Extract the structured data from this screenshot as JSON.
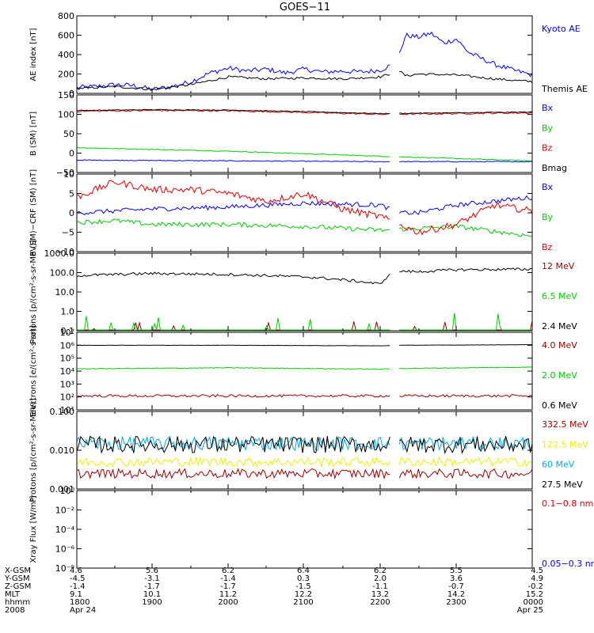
{
  "title": "GOES−11",
  "colors": {
    "black": "#000000",
    "blue": "#0000ee",
    "red": "#dd0000",
    "green": "#00cc00",
    "darkred": "#990000",
    "cyan": "#00aadd",
    "yellow": "#eeee00"
  },
  "time_axis": {
    "range_hhmm": [
      "1800",
      "0000"
    ],
    "ticks": [
      "1800",
      "1900",
      "2000",
      "2100",
      "2200",
      "2300",
      "0000"
    ],
    "data_gap": [
      "2208",
      "2214"
    ]
  },
  "footer": {
    "rows": [
      {
        "label": "X-GSM",
        "values": [
          "4.6",
          "5.6",
          "6.2",
          "6.4",
          "6.2",
          "5.5",
          "4.5"
        ]
      },
      {
        "label": "Y-GSM",
        "values": [
          "-4.5",
          "-3.1",
          "-1.4",
          "0.3",
          "2.0",
          "3.6",
          "4.9"
        ]
      },
      {
        "label": "Z-GSM",
        "values": [
          "-1.4",
          "-1.7",
          "-1.7",
          "-1.5",
          "-1.1",
          "-0.7",
          "-0.2"
        ]
      },
      {
        "label": "MLT",
        "values": [
          "9.1",
          "10.1",
          "11.2",
          "12.2",
          "13.2",
          "14.2",
          "15.2"
        ]
      },
      {
        "label": "hhmm",
        "values": [
          "1800",
          "1900",
          "2000",
          "2100",
          "2200",
          "2300",
          "0000"
        ]
      },
      {
        "label": "2008",
        "values": [
          "Apr 24",
          "",
          "",
          "",
          "",
          "",
          "Apr 25"
        ]
      }
    ]
  },
  "chart_data": [
    {
      "type": "line",
      "scale": "linear",
      "ylabel": "AE index [nT]",
      "ylim": [
        0,
        800
      ],
      "yticks": [
        0,
        200,
        400,
        600,
        800
      ],
      "tick_labels": [
        "0",
        "200",
        "400",
        "600",
        "800"
      ],
      "legend": [
        {
          "text": "Kyoto AE",
          "color": "blue"
        },
        {
          "text": "Themis AE",
          "color": "black"
        }
      ],
      "series": [
        {
          "name": "Kyoto AE",
          "color": "blue",
          "noise": 25,
          "x": [
            "1800",
            "1815",
            "1830",
            "1845",
            "1900",
            "1915",
            "1930",
            "1945",
            "2000",
            "2015",
            "2030",
            "2045",
            "2100",
            "2115",
            "2130",
            "2145",
            "2200",
            "2210",
            "2215",
            "2220",
            "2225",
            "2230",
            "2240",
            "2250",
            "2300",
            "2310",
            "2320",
            "2330",
            "2345",
            "0000"
          ],
          "y": [
            60,
            70,
            90,
            80,
            40,
            70,
            120,
            210,
            260,
            230,
            250,
            210,
            250,
            220,
            230,
            220,
            240,
            300,
            410,
            600,
            590,
            580,
            620,
            520,
            560,
            420,
            360,
            300,
            240,
            190
          ]
        },
        {
          "name": "Themis AE",
          "color": "black",
          "noise": 12,
          "x": [
            "1800",
            "1830",
            "1900",
            "1930",
            "2000",
            "2030",
            "2100",
            "2130",
            "2200",
            "2215",
            "2220",
            "2230",
            "2300",
            "2330",
            "0000"
          ],
          "y": [
            50,
            70,
            40,
            90,
            170,
            150,
            160,
            150,
            170,
            230,
            180,
            200,
            190,
            150,
            120
          ]
        }
      ]
    },
    {
      "type": "line",
      "scale": "linear",
      "ylabel": "B (SM) [nT]",
      "ylim": [
        -50,
        150
      ],
      "yticks": [
        -50,
        0,
        50,
        100,
        150
      ],
      "tick_labels": [
        "−50",
        "0",
        "50",
        "100",
        "150"
      ],
      "legend": [
        {
          "text": "Bx",
          "color": "blue"
        },
        {
          "text": "By",
          "color": "green"
        },
        {
          "text": "Bz",
          "color": "red"
        },
        {
          "text": "Bmag",
          "color": "black"
        }
      ],
      "series": [
        {
          "name": "Bx",
          "color": "blue",
          "noise": 1,
          "x": [
            "1800",
            "2000",
            "2200",
            "0000"
          ],
          "y": [
            -18,
            -20,
            -22,
            -22
          ]
        },
        {
          "name": "By",
          "color": "green",
          "noise": 1,
          "x": [
            "1800",
            "2000",
            "2200",
            "0000"
          ],
          "y": [
            14,
            5,
            -8,
            -20
          ]
        },
        {
          "name": "Bz",
          "color": "red",
          "noise": 2,
          "x": [
            "1800",
            "1900",
            "2000",
            "2100",
            "2200",
            "2300",
            "0000"
          ],
          "y": [
            108,
            110,
            109,
            105,
            100,
            102,
            104
          ]
        },
        {
          "name": "Bmag",
          "color": "black",
          "noise": 1,
          "x": [
            "1800",
            "1900",
            "2000",
            "2100",
            "2200",
            "2300",
            "0000"
          ],
          "y": [
            110,
            112,
            111,
            107,
            102,
            104,
            106
          ]
        }
      ]
    },
    {
      "type": "line",
      "scale": "linear",
      "ylabel": "B (SM)−CRF (SM) [nT]",
      "ylim": [
        -10,
        10
      ],
      "yticks": [
        -10,
        -5,
        0,
        5,
        10
      ],
      "tick_labels": [
        "−10",
        "−5",
        "0",
        "5",
        "10"
      ],
      "legend": [
        {
          "text": "Bx",
          "color": "blue"
        },
        {
          "text": "By",
          "color": "green"
        },
        {
          "text": "Bz",
          "color": "red"
        }
      ],
      "series": [
        {
          "name": "Bx",
          "color": "blue",
          "noise": 0.6,
          "x": [
            "1800",
            "1900",
            "2000",
            "2100",
            "2200",
            "2215",
            "2230",
            "2300",
            "0000"
          ],
          "y": [
            0,
            1,
            1.5,
            2.5,
            2,
            0,
            0,
            2,
            4
          ]
        },
        {
          "name": "By",
          "color": "green",
          "noise": 0.6,
          "x": [
            "1800",
            "1830",
            "1900",
            "2000",
            "2100",
            "2200",
            "2230",
            "2300",
            "0000"
          ],
          "y": [
            -2.5,
            -2,
            -3,
            -3,
            -3.5,
            -4.5,
            -4,
            -3.5,
            -6
          ]
        },
        {
          "name": "Bz",
          "color": "red",
          "noise": 0.9,
          "x": [
            "1800",
            "1830",
            "1900",
            "1930",
            "2000",
            "2030",
            "2100",
            "2130",
            "2200",
            "2215",
            "2230",
            "2300",
            "2330",
            "0000"
          ],
          "y": [
            4,
            8,
            6,
            6,
            5,
            3,
            5,
            1,
            -1,
            -3,
            -5,
            -3,
            2,
            0.5
          ]
        }
      ]
    },
    {
      "type": "line",
      "scale": "log",
      "ylabel": "Protons [p/(cm²-s-sr-MeV)]",
      "ylim": [
        0.1,
        1000
      ],
      "yticks": [
        0.1,
        1,
        10,
        100,
        1000
      ],
      "tick_labels": [
        "0.1",
        "1.0",
        "10.0",
        "100.0",
        "1000.0"
      ],
      "legend": [
        {
          "text": "12 MeV",
          "color": "darkred"
        },
        {
          "text": "6.5 MeV",
          "color": "green"
        },
        {
          "text": "2.4 MeV",
          "color": "black"
        }
      ],
      "series": [
        {
          "name": "12 MeV",
          "color": "darkred",
          "noise": 0.25,
          "spiky": true,
          "x": [
            "1800",
            "0000"
          ],
          "y": [
            0.12,
            0.12
          ]
        },
        {
          "name": "6.5 MeV",
          "color": "green",
          "noise": 0.45,
          "spiky": true,
          "x": [
            "1800",
            "0000"
          ],
          "y": [
            0.15,
            0.15
          ]
        },
        {
          "name": "2.4 MeV",
          "color": "black",
          "noise": 0.07,
          "x": [
            "1800",
            "1900",
            "2000",
            "2100",
            "2200",
            "2215",
            "2230",
            "2300",
            "0000"
          ],
          "y": [
            70,
            90,
            80,
            60,
            25,
            120,
            110,
            140,
            150
          ]
        }
      ]
    },
    {
      "type": "line",
      "scale": "log",
      "ylabel": "Electrons [e/(cm²-s-sr)]",
      "ylim": [
        10,
        10000000
      ],
      "yticks": [
        10,
        100,
        1000,
        10000,
        100000,
        1000000,
        10000000
      ],
      "tick_labels": [
        "10¹",
        "10²",
        "10³",
        "10⁴",
        "10⁵",
        "10⁶",
        "10⁷"
      ],
      "legend": [
        {
          "text": "4.0 MeV",
          "color": "darkred"
        },
        {
          "text": "2.0 MeV",
          "color": "green"
        },
        {
          "text": "0.6 MeV",
          "color": "black"
        }
      ],
      "series": [
        {
          "name": "4.0 MeV",
          "color": "darkred",
          "noise": 0.1,
          "x": [
            "1800",
            "0000"
          ],
          "y": [
            120,
            120
          ]
        },
        {
          "name": "2.0 MeV",
          "color": "green",
          "noise": 0.025,
          "x": [
            "1800",
            "2000",
            "2200",
            "2215",
            "0000"
          ],
          "y": [
            15000,
            18000,
            14000,
            16000,
            20000
          ]
        },
        {
          "name": "0.6 MeV",
          "color": "black",
          "noise": 0.01,
          "x": [
            "1800",
            "2000",
            "2200",
            "2215",
            "0000"
          ],
          "y": [
            1000000,
            1000000,
            900000,
            1000000,
            1100000
          ]
        }
      ]
    },
    {
      "type": "line",
      "scale": "log",
      "ylabel": "Protons [p/(cm²-s-sr-MeV)]",
      "ylim": [
        0.001,
        0.1
      ],
      "yticks": [
        0.001,
        0.01,
        0.1
      ],
      "tick_labels": [
        "0.001",
        "0.010",
        "0.100"
      ],
      "legend": [
        {
          "text": "332.5 MeV",
          "color": "darkred"
        },
        {
          "text": "122.5 MeV",
          "color": "yellow"
        },
        {
          "text": "60 MeV",
          "color": "cyan"
        },
        {
          "text": "27.5 MeV",
          "color": "black"
        }
      ],
      "series": [
        {
          "name": "332.5 MeV",
          "color": "darkred",
          "noise": 0.12,
          "x": [
            "1800",
            "0000"
          ],
          "y": [
            0.0025,
            0.0025
          ]
        },
        {
          "name": "122.5 MeV",
          "color": "yellow",
          "noise": 0.12,
          "x": [
            "1800",
            "0000"
          ],
          "y": [
            0.005,
            0.005
          ]
        },
        {
          "name": "60 MeV",
          "color": "cyan",
          "noise": 0.18,
          "x": [
            "1800",
            "0000"
          ],
          "y": [
            0.015,
            0.015
          ]
        },
        {
          "name": "27.5 MeV",
          "color": "black",
          "noise": 0.22,
          "x": [
            "1800",
            "0000"
          ],
          "y": [
            0.014,
            0.014
          ]
        }
      ]
    },
    {
      "type": "line",
      "scale": "log",
      "ylabel": "Xray Flux [W/m²]",
      "ylim": [
        1e-08,
        1
      ],
      "yticks": [
        1e-08,
        1e-06,
        0.0001,
        0.01,
        1
      ],
      "tick_labels": [
        "10⁻⁸",
        "10⁻⁶",
        "10⁻⁴",
        "10⁻²",
        "10⁰"
      ],
      "legend": [
        {
          "text": "0.1−0.8 nm",
          "color": "red"
        },
        {
          "text": "0.05−0.3 nr",
          "color": "blue"
        }
      ],
      "series": []
    }
  ]
}
